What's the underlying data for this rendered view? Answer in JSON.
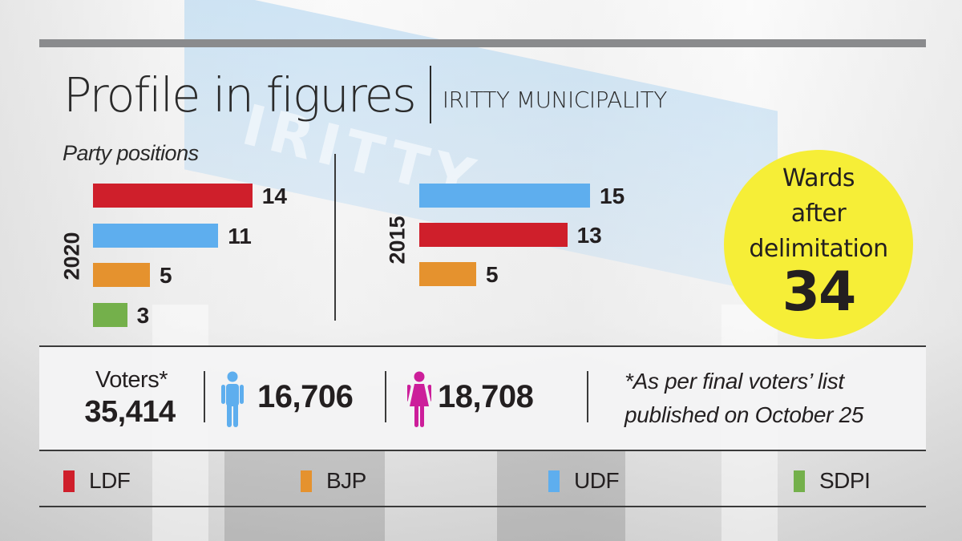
{
  "header": {
    "title": "Profile in figures",
    "subtitle": "IRITTY MUNICIPALITY"
  },
  "section_label": "Party positions",
  "wards": {
    "line1": "Wards",
    "line2": "after",
    "line3": "delimitation",
    "value": "34"
  },
  "voters": {
    "label": "Voters*",
    "total": "35,414",
    "male": "16,706",
    "female": "18,708",
    "male_icon": "male-person-icon",
    "female_icon": "female-person-icon",
    "male_color": "#5eaeee",
    "female_color": "#cc1e9a",
    "footnote_line1": "*As per final voters’ list",
    "footnote_line2": "published on October 25"
  },
  "legend": [
    {
      "label": "LDF",
      "color": "#cf1f2b"
    },
    {
      "label": "BJP",
      "color": "#e5922e"
    },
    {
      "label": "UDF",
      "color": "#5eaeee"
    },
    {
      "label": "SDPI",
      "color": "#74b04b"
    }
  ],
  "colors": {
    "LDF": "#cf1f2b",
    "BJP": "#e5922e",
    "UDF": "#5eaeee",
    "SDPI": "#74b04b",
    "highlight": "#f6ee37",
    "rule": "#8a8b8d"
  },
  "chart_data": [
    {
      "type": "bar",
      "orientation": "horizontal",
      "title": "2020",
      "categories": [
        "LDF",
        "UDF",
        "BJP",
        "SDPI"
      ],
      "values": [
        14,
        11,
        5,
        3
      ],
      "labels": [
        "14",
        "11",
        "5",
        "3"
      ],
      "xlabel": "",
      "ylabel": "2020",
      "xlim": [
        0,
        15
      ],
      "grid": false
    },
    {
      "type": "bar",
      "orientation": "horizontal",
      "title": "2015",
      "categories": [
        "UDF",
        "LDF",
        "BJP"
      ],
      "values": [
        15,
        13,
        5
      ],
      "labels": [
        "15",
        "13",
        "5"
      ],
      "xlabel": "",
      "ylabel": "2015",
      "xlim": [
        0,
        15
      ],
      "grid": false
    }
  ]
}
